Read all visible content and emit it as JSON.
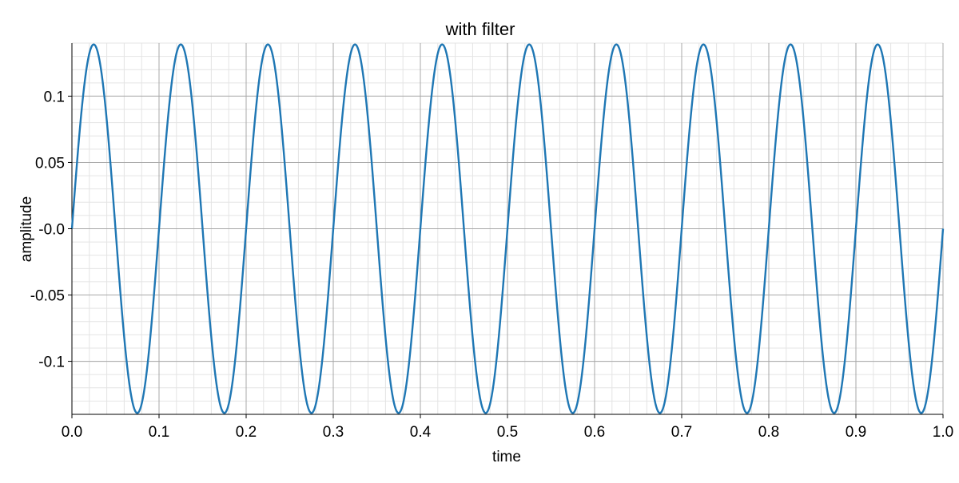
{
  "chart_data": {
    "type": "line",
    "title": "with filter",
    "xlabel": "time",
    "ylabel": "amplitude",
    "xlim": [
      0.0,
      1.0
    ],
    "ylim": [
      -0.14,
      0.14
    ],
    "x_ticks": [
      0.0,
      0.1,
      0.2,
      0.3,
      0.4,
      0.5,
      0.6,
      0.7,
      0.8,
      0.9,
      1.0
    ],
    "x_tick_labels": [
      "0.0",
      "0.1",
      "0.2",
      "0.3",
      "0.4",
      "0.5",
      "0.6",
      "0.7",
      "0.8",
      "0.9",
      "1.0"
    ],
    "y_ticks": [
      0.1,
      0.05,
      0.0,
      -0.05,
      -0.1
    ],
    "y_tick_labels": [
      "0.1",
      "0.05",
      "-0.0",
      "-0.05",
      "-0.1"
    ],
    "grid": true,
    "minor_grid": true,
    "legend": "none",
    "series": [
      {
        "color": "#1f77b4",
        "function": "sine",
        "amplitude": 0.139,
        "frequency_hz": 10,
        "phase": 0.0,
        "x_start": 0.0,
        "x_end": 1.0
      }
    ]
  }
}
